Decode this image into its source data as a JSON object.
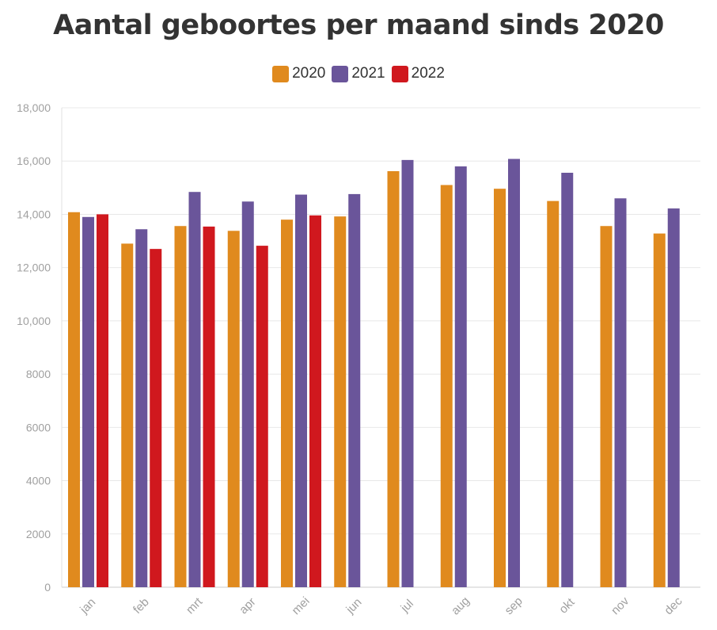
{
  "chart_data": {
    "type": "bar",
    "title": "Aantal geboortes per maand sinds 2020",
    "xlabel": "",
    "ylabel": "",
    "categories": [
      "jan",
      "feb",
      "mrt",
      "apr",
      "mei",
      "jun",
      "jul",
      "aug",
      "sep",
      "okt",
      "nov",
      "dec"
    ],
    "ylim": [
      0,
      18000
    ],
    "yticks": [
      0,
      2000,
      4000,
      6000,
      8000,
      10000,
      12000,
      14000,
      16000,
      18000
    ],
    "ytick_labels": [
      "0",
      "2000",
      "4000",
      "6000",
      "8000",
      "10,000",
      "12,000",
      "14,000",
      "16,000",
      "18,000"
    ],
    "grid": true,
    "legend_position": "top-center",
    "series": [
      {
        "name": "2020",
        "color": "#e08a1e",
        "values": [
          14080,
          12900,
          13560,
          13380,
          13800,
          13920,
          15620,
          15100,
          14960,
          14500,
          13560,
          13280
        ]
      },
      {
        "name": "2021",
        "color": "#6a559a",
        "values": [
          13900,
          13440,
          14840,
          14480,
          14740,
          14760,
          16040,
          15800,
          16080,
          15560,
          14600,
          14220
        ]
      },
      {
        "name": "2022",
        "color": "#d0181e",
        "values": [
          14000,
          12700,
          13540,
          12820,
          13960,
          null,
          null,
          null,
          null,
          null,
          null,
          null
        ]
      }
    ]
  }
}
